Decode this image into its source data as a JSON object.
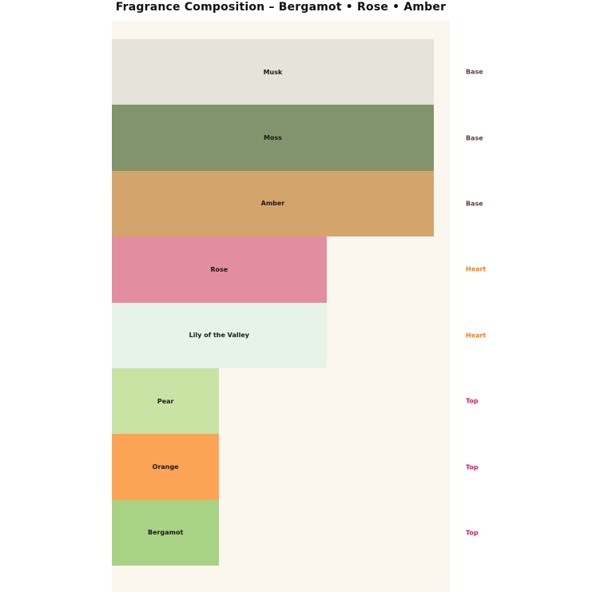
{
  "title": "Fragrance Composition – Bergamot • Rose • Amber",
  "colors": {
    "page_bg": "#ffffff",
    "plot_bg": "#fbf6ee",
    "title_text": "#111111",
    "bar_label_text": "#1a1a1a"
  },
  "chart_data": {
    "type": "bar",
    "orientation": "horizontal",
    "title": "Fragrance Composition – Bergamot • Rose • Amber",
    "categories": [
      "Musk",
      "Moss",
      "Amber",
      "Rose",
      "Lily of the Valley",
      "Pear",
      "Orange",
      "Bergamot"
    ],
    "values": [
      3,
      3,
      3,
      2,
      2,
      1,
      1,
      1
    ],
    "layers": [
      "Base",
      "Base",
      "Base",
      "Heart",
      "Heart",
      "Top",
      "Top",
      "Top"
    ],
    "bar_colors": [
      "#e6e3da",
      "#81946b",
      "#d3a46c",
      "#e28da0",
      "#e7f2e8",
      "#c9e3a5",
      "#fca455",
      "#a9d384"
    ],
    "layer_label_colors": {
      "Base": "#5d4037",
      "Heart": "#ef7f1a",
      "Top": "#d81b60"
    },
    "xlabel": "",
    "ylabel": "",
    "xlim": [
      0,
      3.15
    ],
    "grid": false,
    "axes_visible": false,
    "legend": "none",
    "bar_labels_inside": true,
    "layer_labels_position": "right"
  }
}
